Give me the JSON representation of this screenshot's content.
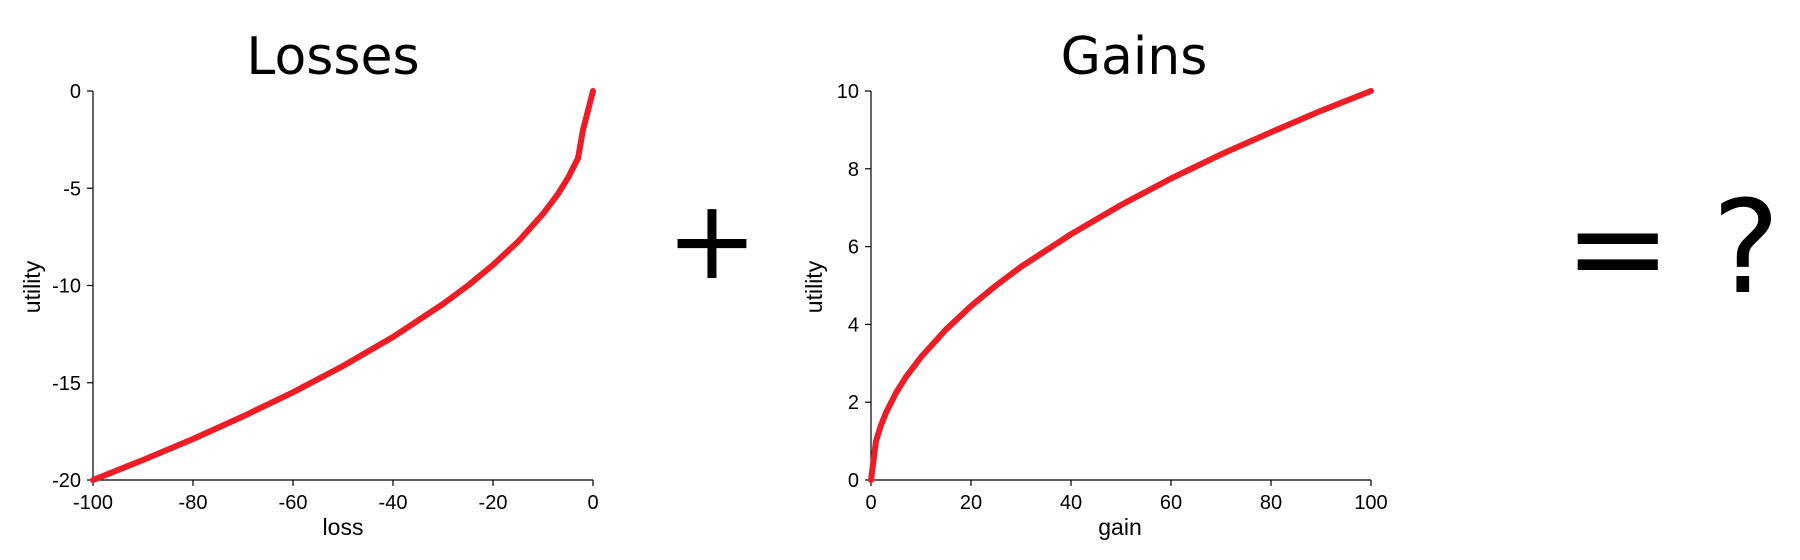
{
  "chart_data": [
    {
      "type": "line",
      "title": "Losses",
      "xlabel": "loss",
      "ylabel": "utility",
      "xlim": [
        -100,
        0
      ],
      "ylim": [
        -20,
        0
      ],
      "xticks": [
        -100,
        -80,
        -60,
        -40,
        -20,
        0
      ],
      "yticks": [
        0,
        -5,
        -10,
        -15,
        -20
      ],
      "series": [
        {
          "color": "#ee1c25",
          "x": [
            -100,
            -90,
            -80,
            -70,
            -60,
            -50,
            -40,
            -30,
            -25,
            -20,
            -15,
            -10,
            -7,
            -5,
            -3,
            -2,
            -1,
            0
          ],
          "y": [
            -20,
            -18.97,
            -17.89,
            -16.73,
            -15.49,
            -14.14,
            -12.65,
            -10.95,
            -10.0,
            -8.94,
            -7.75,
            -6.32,
            -5.29,
            -4.47,
            -3.46,
            -2.0,
            -1.0,
            0
          ]
        }
      ]
    },
    {
      "type": "line",
      "title": "Gains",
      "xlabel": "gain",
      "ylabel": "utility",
      "xlim": [
        0,
        100
      ],
      "ylim": [
        0,
        10
      ],
      "xticks": [
        0,
        20,
        40,
        60,
        80,
        100
      ],
      "yticks": [
        0,
        2,
        4,
        6,
        8,
        10
      ],
      "series": [
        {
          "color": "#ee1c25",
          "x": [
            0,
            1,
            2,
            3,
            5,
            7,
            10,
            15,
            20,
            25,
            30,
            40,
            50,
            60,
            70,
            80,
            90,
            100
          ],
          "y": [
            0,
            1.0,
            1.41,
            1.73,
            2.24,
            2.65,
            3.16,
            3.87,
            4.47,
            5.0,
            5.48,
            6.32,
            7.07,
            7.75,
            8.37,
            8.94,
            9.49,
            10.0
          ]
        }
      ]
    }
  ],
  "operators": {
    "plus": "+",
    "equals_question": "= ?"
  }
}
